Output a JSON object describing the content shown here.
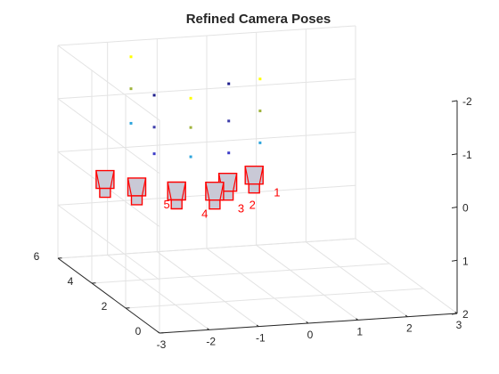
{
  "chart_data": {
    "type": "scatter",
    "title": "Refined Camera Poses",
    "xlabel": "",
    "ylabel": "",
    "zlabel": "",
    "xlim": [
      -3,
      3
    ],
    "ylim": [
      0,
      6
    ],
    "zlim": [
      -2,
      2
    ],
    "z_direction": "reverse",
    "grid": true,
    "x_ticks": [
      "-3",
      "-2",
      "-1",
      "0",
      "1",
      "2",
      "3"
    ],
    "y_ticks": [
      "0",
      "2",
      "4",
      "6"
    ],
    "z_ticks": [
      "-2",
      "-1",
      "0",
      "1",
      "2"
    ],
    "point_colors": [
      "#ffff00",
      "#a0b43c",
      "#2ea5dc",
      "#1e1e8c",
      "#3c3caa",
      "#3c3cc8"
    ],
    "points": [
      {
        "x": -1.8,
        "y": 5.2,
        "z": -1.9
      },
      {
        "x": -1.8,
        "y": 5.2,
        "z": -1.3
      },
      {
        "x": -1.8,
        "y": 5.2,
        "z": -0.65
      },
      {
        "x": -1.4,
        "y": 5.0,
        "z": -1.2
      },
      {
        "x": -1.4,
        "y": 5.0,
        "z": -0.6
      },
      {
        "x": -1.4,
        "y": 5.0,
        "z": -0.1
      },
      {
        "x": -0.8,
        "y": 4.6,
        "z": -1.2
      },
      {
        "x": -0.8,
        "y": 4.6,
        "z": -0.65
      },
      {
        "x": -0.8,
        "y": 4.6,
        "z": -0.1
      },
      {
        "x": 0.0,
        "y": 4.7,
        "z": -1.4
      },
      {
        "x": 0.0,
        "y": 4.7,
        "z": -0.7
      },
      {
        "x": 0.0,
        "y": 4.7,
        "z": -0.1
      },
      {
        "x": 0.7,
        "y": 4.9,
        "z": -1.4
      },
      {
        "x": 0.7,
        "y": 4.9,
        "z": -0.8
      },
      {
        "x": 0.7,
        "y": 4.9,
        "z": -0.2
      }
    ],
    "cameras": [
      {
        "label": "1",
        "x": 0.0,
        "y": 3.2,
        "z": 0.0
      },
      {
        "label": "2",
        "x": -0.6,
        "y": 3.0,
        "z": 0.05
      },
      {
        "label": "3",
        "x": -1.0,
        "y": 2.6,
        "z": 0.1
      },
      {
        "label": "4",
        "x": -1.7,
        "y": 2.8,
        "z": 0.1
      },
      {
        "label": "5",
        "x": -2.4,
        "y": 3.1,
        "z": 0.05
      },
      {
        "label": "",
        "x": -2.8,
        "y": 3.8,
        "z": 0.05
      }
    ],
    "camera_color": "#ff0000"
  }
}
